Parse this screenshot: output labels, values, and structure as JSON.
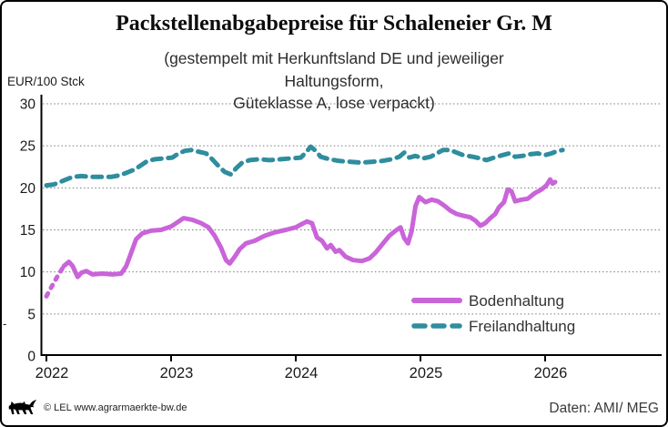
{
  "title": "Packstellenabgabepreise für Schaleneier Gr. M",
  "subtitle_lines": [
    "(gestempelt mit Herkunftsland DE und jeweiliger",
    "Haltungsform,",
    "Güteklasse A, lose verpackt)"
  ],
  "y_axis_unit": "EUR/100 Stck",
  "stray_mark": "-",
  "footer": {
    "logo": "baden-wuerttemberg-lion",
    "copyright": "© LEL www.agrarmaerkte-bw.de",
    "source": "Daten: AMI/ MEG"
  },
  "chart_data": {
    "type": "line",
    "title": "Packstellenabgabepreise für Schaleneier Gr. M",
    "subtitle": "(gestempelt mit Herkunftsland DE und jeweiliger Haltungsform, Güteklasse A, lose verpackt)",
    "ylabel": "EUR/100 Stck",
    "xlabel": "",
    "ylim": [
      0,
      30
    ],
    "xlim": [
      2022.0,
      2026.93
    ],
    "y_ticks": [
      0,
      5,
      10,
      15,
      20,
      25,
      30
    ],
    "x_ticks": [
      2022,
      2023,
      2024,
      2025,
      2026
    ],
    "grid": "horizontal dotted",
    "legend_position": "inside lower right",
    "series": [
      {
        "name": "Bodenhaltung",
        "style": "solid",
        "color": "#c964d9",
        "lead_dashed_points": 3,
        "points": [
          [
            2022.0,
            7.1
          ],
          [
            2022.04,
            8.2
          ],
          [
            2022.09,
            9.5
          ],
          [
            2022.14,
            10.7
          ],
          [
            2022.18,
            11.2
          ],
          [
            2022.21,
            10.7
          ],
          [
            2022.25,
            9.4
          ],
          [
            2022.28,
            9.9
          ],
          [
            2022.32,
            10.1
          ],
          [
            2022.37,
            9.7
          ],
          [
            2022.45,
            9.8
          ],
          [
            2022.53,
            9.7
          ],
          [
            2022.6,
            9.8
          ],
          [
            2022.64,
            10.7
          ],
          [
            2022.68,
            12.3
          ],
          [
            2022.72,
            13.9
          ],
          [
            2022.77,
            14.6
          ],
          [
            2022.84,
            14.9
          ],
          [
            2022.92,
            15.0
          ],
          [
            2023.0,
            15.4
          ],
          [
            2023.06,
            16.0
          ],
          [
            2023.1,
            16.4
          ],
          [
            2023.17,
            16.2
          ],
          [
            2023.24,
            15.8
          ],
          [
            2023.3,
            15.3
          ],
          [
            2023.35,
            14.3
          ],
          [
            2023.4,
            12.9
          ],
          [
            2023.44,
            11.4
          ],
          [
            2023.47,
            11.0
          ],
          [
            2023.51,
            11.8
          ],
          [
            2023.55,
            12.7
          ],
          [
            2023.6,
            13.4
          ],
          [
            2023.67,
            13.7
          ],
          [
            2023.75,
            14.3
          ],
          [
            2023.83,
            14.7
          ],
          [
            2023.92,
            15.0
          ],
          [
            2024.0,
            15.3
          ],
          [
            2024.05,
            15.7
          ],
          [
            2024.09,
            16.0
          ],
          [
            2024.13,
            15.8
          ],
          [
            2024.17,
            14.1
          ],
          [
            2024.21,
            13.7
          ],
          [
            2024.25,
            12.8
          ],
          [
            2024.28,
            13.2
          ],
          [
            2024.32,
            12.4
          ],
          [
            2024.35,
            12.6
          ],
          [
            2024.4,
            11.8
          ],
          [
            2024.46,
            11.4
          ],
          [
            2024.53,
            11.3
          ],
          [
            2024.59,
            11.6
          ],
          [
            2024.64,
            12.3
          ],
          [
            2024.7,
            13.4
          ],
          [
            2024.75,
            14.3
          ],
          [
            2024.8,
            14.9
          ],
          [
            2024.84,
            15.3
          ],
          [
            2024.87,
            14.0
          ],
          [
            2024.9,
            13.4
          ],
          [
            2024.93,
            14.9
          ],
          [
            2024.96,
            17.8
          ],
          [
            2024.99,
            18.9
          ],
          [
            2025.04,
            18.3
          ],
          [
            2025.09,
            18.6
          ],
          [
            2025.14,
            18.4
          ],
          [
            2025.19,
            17.9
          ],
          [
            2025.24,
            17.3
          ],
          [
            2025.29,
            16.9
          ],
          [
            2025.34,
            16.7
          ],
          [
            2025.4,
            16.5
          ],
          [
            2025.44,
            16.1
          ],
          [
            2025.48,
            15.5
          ],
          [
            2025.52,
            15.8
          ],
          [
            2025.56,
            16.4
          ],
          [
            2025.6,
            16.9
          ],
          [
            2025.63,
            17.7
          ],
          [
            2025.67,
            18.3
          ],
          [
            2025.7,
            19.8
          ],
          [
            2025.73,
            19.6
          ],
          [
            2025.76,
            18.4
          ],
          [
            2025.81,
            18.6
          ],
          [
            2025.86,
            18.7
          ],
          [
            2025.92,
            19.4
          ],
          [
            2025.97,
            19.8
          ],
          [
            2026.01,
            20.3
          ],
          [
            2026.04,
            21.0
          ],
          [
            2026.06,
            20.5
          ],
          [
            2026.08,
            20.7
          ]
        ]
      },
      {
        "name": "Freilandhaltung",
        "style": "dashed",
        "color": "#2f8d9e",
        "points": [
          [
            2022.0,
            20.3
          ],
          [
            2022.06,
            20.4
          ],
          [
            2022.11,
            20.7
          ],
          [
            2022.16,
            21.0
          ],
          [
            2022.21,
            21.3
          ],
          [
            2022.28,
            21.4
          ],
          [
            2022.36,
            21.3
          ],
          [
            2022.44,
            21.3
          ],
          [
            2022.52,
            21.3
          ],
          [
            2022.59,
            21.5
          ],
          [
            2022.66,
            21.9
          ],
          [
            2022.71,
            22.2
          ],
          [
            2022.76,
            22.7
          ],
          [
            2022.81,
            23.2
          ],
          [
            2022.87,
            23.4
          ],
          [
            2022.94,
            23.5
          ],
          [
            2023.01,
            23.6
          ],
          [
            2023.06,
            24.1
          ],
          [
            2023.11,
            24.4
          ],
          [
            2023.16,
            24.5
          ],
          [
            2023.22,
            24.3
          ],
          [
            2023.28,
            24.1
          ],
          [
            2023.33,
            23.4
          ],
          [
            2023.38,
            22.6
          ],
          [
            2023.43,
            21.9
          ],
          [
            2023.48,
            21.6
          ],
          [
            2023.52,
            22.3
          ],
          [
            2023.57,
            23.0
          ],
          [
            2023.63,
            23.3
          ],
          [
            2023.71,
            23.4
          ],
          [
            2023.79,
            23.3
          ],
          [
            2023.88,
            23.4
          ],
          [
            2023.96,
            23.5
          ],
          [
            2024.04,
            23.6
          ],
          [
            2024.08,
            24.2
          ],
          [
            2024.12,
            24.9
          ],
          [
            2024.16,
            24.4
          ],
          [
            2024.2,
            23.7
          ],
          [
            2024.27,
            23.4
          ],
          [
            2024.35,
            23.2
          ],
          [
            2024.44,
            23.1
          ],
          [
            2024.52,
            23.0
          ],
          [
            2024.61,
            23.1
          ],
          [
            2024.69,
            23.2
          ],
          [
            2024.77,
            23.4
          ],
          [
            2024.83,
            23.7
          ],
          [
            2024.87,
            24.2
          ],
          [
            2024.91,
            23.6
          ],
          [
            2024.96,
            23.8
          ],
          [
            2025.02,
            23.5
          ],
          [
            2025.08,
            23.7
          ],
          [
            2025.13,
            24.1
          ],
          [
            2025.18,
            24.5
          ],
          [
            2025.24,
            24.5
          ],
          [
            2025.29,
            24.2
          ],
          [
            2025.34,
            23.9
          ],
          [
            2025.42,
            23.7
          ],
          [
            2025.48,
            23.5
          ],
          [
            2025.53,
            23.3
          ],
          [
            2025.59,
            23.6
          ],
          [
            2025.66,
            23.9
          ],
          [
            2025.71,
            24.1
          ],
          [
            2025.76,
            23.7
          ],
          [
            2025.82,
            23.8
          ],
          [
            2025.88,
            24.0
          ],
          [
            2025.94,
            24.1
          ],
          [
            2026.0,
            23.9
          ],
          [
            2026.05,
            24.1
          ],
          [
            2026.1,
            24.4
          ],
          [
            2026.14,
            24.5
          ]
        ]
      }
    ]
  }
}
